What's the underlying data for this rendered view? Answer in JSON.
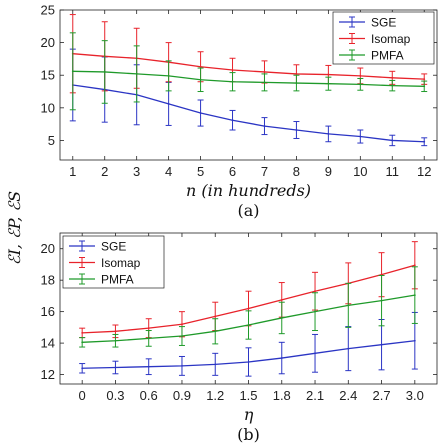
{
  "figure": {
    "ylabel": "ℰI, ℰP, ℰS"
  },
  "colors": {
    "SGE": "#2b35c4",
    "Isomap": "#e8232b",
    "PMFA": "#1f9a2a"
  },
  "chart_data": [
    {
      "type": "line",
      "panel_label": "(a)",
      "xlabel": "n (in hundreds)",
      "ylabel": "",
      "categories": [
        "1",
        "2",
        "3",
        "4",
        "5",
        "6",
        "7",
        "8",
        "9",
        "10",
        "11",
        "12"
      ],
      "x": [
        1,
        2,
        3,
        4,
        5,
        6,
        7,
        8,
        9,
        10,
        11,
        12
      ],
      "xlim": [
        0.6,
        12.4
      ],
      "ylim": [
        2,
        25
      ],
      "yticks": [
        5,
        10,
        15,
        20,
        25
      ],
      "legend_position": "top-right",
      "grid": false,
      "series": [
        {
          "name": "SGE",
          "values": [
            13.5,
            12.8,
            12.0,
            10.6,
            9.2,
            8.1,
            7.2,
            6.6,
            6.0,
            5.6,
            5.0,
            4.8
          ],
          "err": [
            5.5,
            5.0,
            4.6,
            3.3,
            2.0,
            1.5,
            1.3,
            1.3,
            1.2,
            1.0,
            0.8,
            0.6
          ]
        },
        {
          "name": "Isomap",
          "values": [
            18.3,
            17.9,
            17.6,
            17.0,
            16.3,
            15.8,
            15.5,
            15.2,
            15.1,
            14.9,
            14.6,
            14.4
          ],
          "err": [
            6.0,
            5.3,
            4.6,
            3.0,
            2.3,
            1.8,
            1.7,
            1.4,
            1.4,
            1.2,
            1.0,
            0.8
          ]
        },
        {
          "name": "PMFA",
          "values": [
            15.6,
            15.5,
            15.2,
            14.9,
            14.3,
            14.0,
            13.9,
            13.8,
            13.7,
            13.6,
            13.4,
            13.3
          ],
          "err": [
            5.9,
            4.8,
            4.3,
            2.3,
            1.8,
            1.4,
            1.3,
            1.2,
            1.0,
            0.9,
            0.8,
            0.8
          ]
        }
      ]
    },
    {
      "type": "line",
      "panel_label": "(b)",
      "xlabel": "η",
      "ylabel": "",
      "categories": [
        "0",
        "0.3",
        "0.6",
        "0.9",
        "1.2",
        "1.5",
        "1.8",
        "2.1",
        "2.4",
        "2.7",
        "3.0"
      ],
      "x": [
        0,
        0.3,
        0.6,
        0.9,
        1.2,
        1.5,
        1.8,
        2.1,
        2.4,
        2.7,
        3.0
      ],
      "xlim": [
        -0.2,
        3.2
      ],
      "ylim": [
        11.4,
        21.0
      ],
      "yticks": [
        12,
        14,
        16,
        18,
        20
      ],
      "legend_position": "top-left",
      "grid": false,
      "series": [
        {
          "name": "SGE",
          "values": [
            12.4,
            12.45,
            12.5,
            12.55,
            12.65,
            12.8,
            13.05,
            13.35,
            13.65,
            13.9,
            14.15
          ],
          "err": [
            0.3,
            0.4,
            0.5,
            0.6,
            0.7,
            0.9,
            1.0,
            1.2,
            1.4,
            1.6,
            1.8
          ]
        },
        {
          "name": "Isomap",
          "values": [
            14.65,
            14.75,
            14.95,
            15.2,
            15.7,
            16.2,
            16.75,
            17.3,
            17.8,
            18.35,
            18.95
          ],
          "err": [
            0.3,
            0.4,
            0.6,
            0.8,
            0.9,
            1.1,
            1.1,
            1.2,
            1.3,
            1.4,
            1.5
          ]
        },
        {
          "name": "PMFA",
          "values": [
            14.05,
            14.15,
            14.3,
            14.45,
            14.75,
            15.15,
            15.6,
            16.0,
            16.4,
            16.7,
            17.05
          ],
          "err": [
            0.3,
            0.4,
            0.5,
            0.6,
            0.8,
            0.9,
            1.0,
            1.2,
            1.4,
            1.6,
            1.8
          ]
        }
      ]
    }
  ]
}
